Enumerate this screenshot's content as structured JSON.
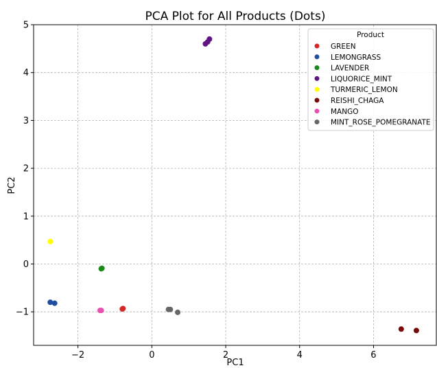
{
  "chart_data": {
    "type": "scatter",
    "title": "PCA Plot for All Products (Dots)",
    "xlabel": "PC1",
    "ylabel": "PC2",
    "xlim": [
      -3.2,
      7.7
    ],
    "ylim": [
      -1.7,
      5.0
    ],
    "xticks": [
      {
        "value": -2,
        "label": "−2"
      },
      {
        "value": 0,
        "label": "0"
      },
      {
        "value": 2,
        "label": "2"
      },
      {
        "value": 4,
        "label": "4"
      },
      {
        "value": 6,
        "label": "6"
      }
    ],
    "yticks": [
      {
        "value": -1,
        "label": "−1"
      },
      {
        "value": 0,
        "label": "0"
      },
      {
        "value": 1,
        "label": "1"
      },
      {
        "value": 2,
        "label": "2"
      },
      {
        "value": 3,
        "label": "3"
      },
      {
        "value": 4,
        "label": "4"
      },
      {
        "value": 5,
        "label": "5"
      }
    ],
    "grid": true,
    "legend": {
      "title": "Product",
      "position": "top-right"
    },
    "series": [
      {
        "name": "GREEN",
        "color": "#d62728",
        "points": [
          {
            "x": -0.8,
            "y": -0.94
          },
          {
            "x": -0.78,
            "y": -0.93
          }
        ]
      },
      {
        "name": "LEMONGRASS",
        "color": "#1f4e9e",
        "points": [
          {
            "x": -2.75,
            "y": -0.8
          },
          {
            "x": -2.63,
            "y": -0.82
          }
        ]
      },
      {
        "name": "LAVENDER",
        "color": "#1a8a1a",
        "points": [
          {
            "x": -1.37,
            "y": -0.1
          },
          {
            "x": -1.35,
            "y": -0.09
          }
        ]
      },
      {
        "name": "LIQUORICE_MINT",
        "color": "#5e1582",
        "points": [
          {
            "x": 1.45,
            "y": 4.6
          },
          {
            "x": 1.51,
            "y": 4.64
          },
          {
            "x": 1.56,
            "y": 4.7
          }
        ]
      },
      {
        "name": "TURMERIC_LEMON",
        "color": "#ffff00",
        "points": [
          {
            "x": -2.75,
            "y": 0.47
          }
        ]
      },
      {
        "name": "REISHI_CHAGA",
        "color": "#7a0a0a",
        "points": [
          {
            "x": 6.75,
            "y": -1.36
          },
          {
            "x": 7.16,
            "y": -1.39
          }
        ]
      },
      {
        "name": "MANGO",
        "color": "#e84fb0",
        "points": [
          {
            "x": -1.4,
            "y": -0.97
          },
          {
            "x": -1.37,
            "y": -0.97
          }
        ]
      },
      {
        "name": "MINT_ROSE_POMEGRANATE",
        "color": "#666666",
        "points": [
          {
            "x": 0.45,
            "y": -0.95
          },
          {
            "x": 0.5,
            "y": -0.95
          },
          {
            "x": 0.7,
            "y": -1.01
          }
        ]
      }
    ]
  }
}
